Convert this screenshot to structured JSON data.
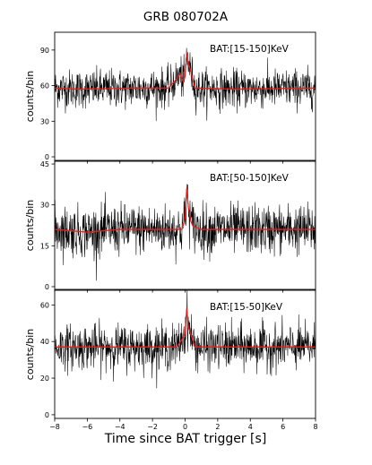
{
  "title": "GRB 080702A",
  "chart_data": {
    "type": "line",
    "title": "GRB 080702A",
    "xlabel": "Time since BAT trigger [s]",
    "xlim": [
      -8,
      8
    ],
    "x_ticks": [
      "−8",
      "−6",
      "−4",
      "−2",
      "0",
      "2",
      "4",
      "6",
      "8"
    ],
    "panels": [
      {
        "label": "BAT:[15-150]KeV",
        "ylabel": "counts/bin",
        "ylim": [
          -3,
          105
        ],
        "y_ticks": [
          "0",
          "30",
          "60",
          "90"
        ],
        "series": [
          {
            "baseline": 58,
            "noise": 8,
            "peak": 87,
            "curve_points": [
              [
                -8,
                58
              ],
              [
                -6.5,
                57
              ],
              [
                -3,
                58
              ],
              [
                -1,
                58
              ],
              [
                -0.5,
                66
              ],
              [
                -0.3,
                70
              ],
              [
                -0.1,
                63
              ],
              [
                0.0,
                68
              ],
              [
                0.1,
                87
              ],
              [
                0.2,
                79
              ],
              [
                0.35,
                72
              ],
              [
                0.5,
                64
              ],
              [
                0.6,
                58
              ],
              [
                3,
                57
              ],
              [
                8,
                58
              ]
            ]
          }
        ]
      },
      {
        "label": "BAT:[50-150]KeV",
        "ylabel": "counts/bin",
        "ylim": [
          -1,
          46
        ],
        "y_ticks": [
          "0",
          "15",
          "30",
          "45"
        ],
        "series": [
          {
            "baseline": 21,
            "noise": 4.5,
            "peak": 36,
            "curve_points": [
              [
                -8,
                21
              ],
              [
                -6,
                20
              ],
              [
                -4,
                21
              ],
              [
                -1,
                21
              ],
              [
                -0.2,
                21
              ],
              [
                0.0,
                25
              ],
              [
                0.1,
                36
              ],
              [
                0.2,
                29
              ],
              [
                0.35,
                24
              ],
              [
                0.5,
                22
              ],
              [
                1,
                21
              ],
              [
                8,
                21
              ]
            ]
          }
        ]
      },
      {
        "label": "BAT:[15-50]KeV",
        "ylabel": "counts/bin",
        "ylim": [
          -2,
          68
        ],
        "y_ticks": [
          "0",
          "20",
          "40",
          "60"
        ],
        "series": [
          {
            "baseline": 37,
            "noise": 6,
            "peak": 58,
            "curve_points": [
              [
                -8,
                37
              ],
              [
                -2,
                37
              ],
              [
                -0.5,
                37
              ],
              [
                -0.2,
                41
              ],
              [
                0.0,
                44
              ],
              [
                0.1,
                58
              ],
              [
                0.2,
                48
              ],
              [
                0.35,
                44
              ],
              [
                0.5,
                40
              ],
              [
                0.6,
                37
              ],
              [
                8,
                37
              ]
            ]
          }
        ]
      }
    ]
  }
}
